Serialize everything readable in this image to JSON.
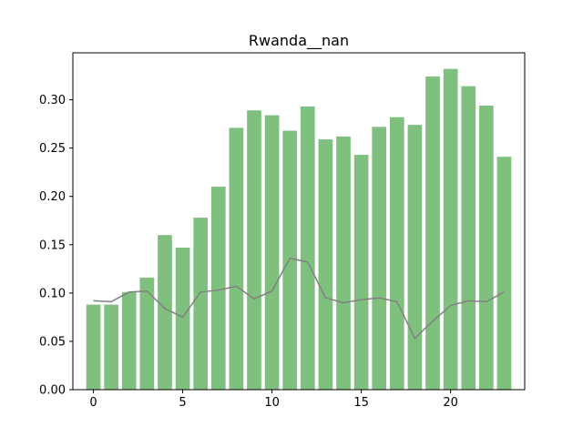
{
  "chart_data": {
    "type": "bar",
    "title": "Rwanda__nan",
    "xlabel": "",
    "ylabel": "",
    "x": [
      0,
      1,
      2,
      3,
      4,
      5,
      6,
      7,
      8,
      9,
      10,
      11,
      12,
      13,
      14,
      15,
      16,
      17,
      18,
      19,
      20,
      21,
      22,
      23
    ],
    "series": [
      {
        "type": "bar",
        "color": "#7fc07f",
        "values": [
          0.088,
          0.088,
          0.101,
          0.116,
          0.16,
          0.147,
          0.178,
          0.21,
          0.271,
          0.289,
          0.284,
          0.268,
          0.293,
          0.259,
          0.262,
          0.243,
          0.272,
          0.282,
          0.274,
          0.324,
          0.332,
          0.314,
          0.294,
          0.241
        ]
      },
      {
        "type": "line",
        "color": "#808080",
        "values": [
          0.092,
          0.091,
          0.101,
          0.102,
          0.084,
          0.075,
          0.101,
          0.103,
          0.107,
          0.094,
          0.102,
          0.136,
          0.132,
          0.095,
          0.09,
          0.093,
          0.095,
          0.091,
          0.053,
          0.071,
          0.087,
          0.092,
          0.091,
          0.101
        ]
      }
    ],
    "xlim": [
      -1.15,
      24.15
    ],
    "ylim": [
      0,
      0.3486
    ],
    "xticks": [
      0,
      5,
      10,
      15,
      20
    ],
    "yticks": [
      0.0,
      0.05,
      0.1,
      0.15,
      0.2,
      0.25,
      0.3
    ],
    "ytick_labels": [
      "0.00",
      "0.05",
      "0.10",
      "0.15",
      "0.20",
      "0.25",
      "0.30"
    ],
    "grid": false,
    "legend": "none"
  }
}
